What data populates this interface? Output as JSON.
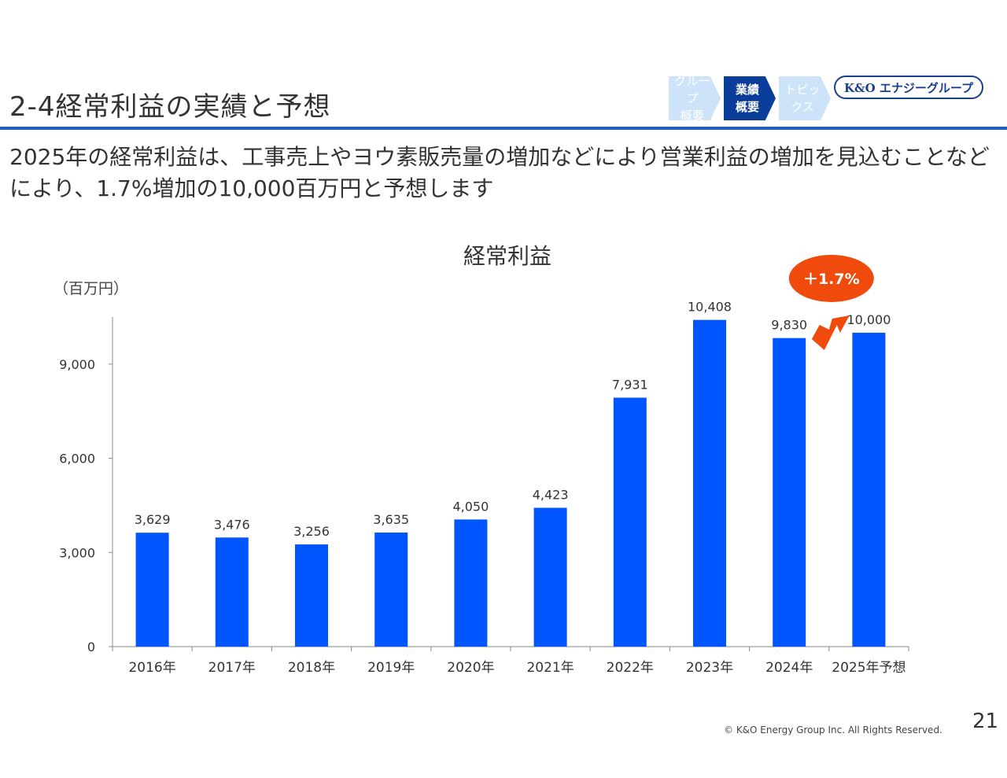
{
  "header": {
    "title": "2-4経常利益の実績と予想",
    "nav": [
      {
        "line1": "グループ",
        "line2": "概要",
        "active": false
      },
      {
        "line1": "業績",
        "line2": "概要",
        "active": true
      },
      {
        "line1": "トピッ",
        "line2": "クス",
        "active": false
      }
    ],
    "logo_text": "K&O エナジーグループ"
  },
  "lead": {
    "text": "2025年の経常利益は、工事売上やヨウ素販売量の増加などにより営業利益の増加を見込むことなどにより、1.7%増加の10,000百万円と予想します"
  },
  "chart_data": {
    "type": "bar",
    "title": "経常利益",
    "unit_label": "（百万円）",
    "categories": [
      "2016年",
      "2017年",
      "2018年",
      "2019年",
      "2020年",
      "2021年",
      "2022年",
      "2023年",
      "2024年",
      "2025年予想"
    ],
    "values": [
      3629,
      3476,
      3256,
      3635,
      4050,
      4423,
      7931,
      10408,
      9830,
      10000
    ],
    "value_labels": [
      "3,629",
      "3,476",
      "3,256",
      "3,635",
      "4,050",
      "4,423",
      "7,931",
      "10,408",
      "9,830",
      "10,000"
    ],
    "yticks": [
      0,
      3000,
      6000,
      9000
    ],
    "ytick_labels": [
      "0",
      "3,000",
      "6,000",
      "9,000"
    ],
    "ylim": [
      0,
      10500
    ],
    "xlabel": "",
    "ylabel": "",
    "grid": false,
    "annotation": "＋1.7%",
    "bar_color": "#0055ff",
    "annotation_color": "#f04a0c"
  },
  "footer": {
    "copyright": "© K&O Energy Group Inc. All Rights Reserved.",
    "page_number": "21"
  }
}
